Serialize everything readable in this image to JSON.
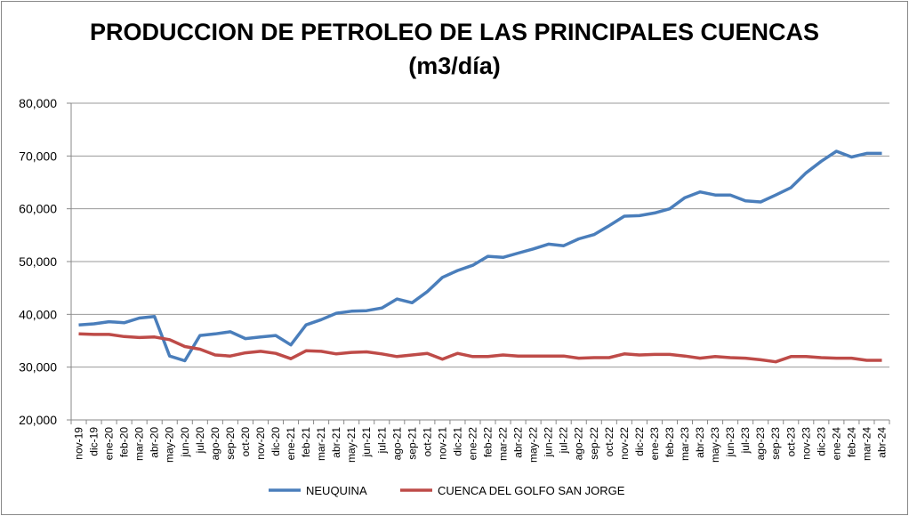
{
  "chart_data": {
    "type": "line",
    "title": "PRODUCCION DE PETROLEO DE LAS PRINCIPALES CUENCAS",
    "subtitle": "(m3/día)",
    "xlabel": "",
    "ylabel": "",
    "ylim": [
      20000,
      80000
    ],
    "yticks": [
      "20,000",
      "30,000",
      "40,000",
      "50,000",
      "60,000",
      "70,000",
      "80,000"
    ],
    "grid": true,
    "legend_position": "bottom",
    "categories": [
      "nov-19",
      "dic-19",
      "ene-20",
      "feb-20",
      "mar-20",
      "abr-20",
      "may-20",
      "jun-20",
      "jul-20",
      "ago-20",
      "sep-20",
      "oct-20",
      "nov-20",
      "dic-20",
      "ene-21",
      "feb-21",
      "mar-21",
      "abr-21",
      "may-21",
      "jun-21",
      "jul-21",
      "ago-21",
      "sep-21",
      "oct-21",
      "nov-21",
      "dic-21",
      "ene-22",
      "feb-22",
      "mar-22",
      "abr-22",
      "may-22",
      "jun-22",
      "jul-22",
      "ago-22",
      "sep-22",
      "oct-22",
      "nov-22",
      "dic-22",
      "ene-23",
      "feb-23",
      "mar-23",
      "abr-23",
      "may-23",
      "jun-23",
      "jul-23",
      "ago-23",
      "sep-23",
      "oct-23",
      "nov-23",
      "dic-23",
      "ene-24",
      "feb-24",
      "mar-24",
      "abr-24"
    ],
    "series": [
      {
        "name": "NEUQUINA",
        "color": "#4a7ebb",
        "values": [
          38000,
          38200,
          38600,
          38400,
          39300,
          39600,
          32100,
          31200,
          36000,
          36300,
          36700,
          35400,
          35700,
          36000,
          34200,
          38000,
          39000,
          40200,
          40600,
          40700,
          41200,
          42900,
          42200,
          44300,
          47000,
          48300,
          49300,
          51000,
          50800,
          51600,
          52400,
          53300,
          53000,
          54300,
          55100,
          56800,
          58600,
          58700,
          59200,
          60000,
          62100,
          63200,
          62600,
          62600,
          61500,
          61300,
          62600,
          64000,
          66800,
          69000,
          70900,
          69800,
          70500,
          70500
        ]
      },
      {
        "name": "CUENCA DEL GOLFO SAN JORGE",
        "color": "#be4b48",
        "values": [
          36300,
          36200,
          36200,
          35800,
          35600,
          35700,
          35200,
          33900,
          33400,
          32300,
          32100,
          32700,
          33000,
          32600,
          31600,
          33100,
          33000,
          32500,
          32800,
          32900,
          32500,
          32000,
          32300,
          32600,
          31500,
          32600,
          32000,
          32000,
          32300,
          32100,
          32100,
          32100,
          32100,
          31700,
          31800,
          31800,
          32500,
          32300,
          32400,
          32400,
          32100,
          31700,
          32000,
          31800,
          31700,
          31400,
          31000,
          32000,
          32000,
          31800,
          31700,
          31700,
          31300,
          31300
        ]
      }
    ]
  }
}
